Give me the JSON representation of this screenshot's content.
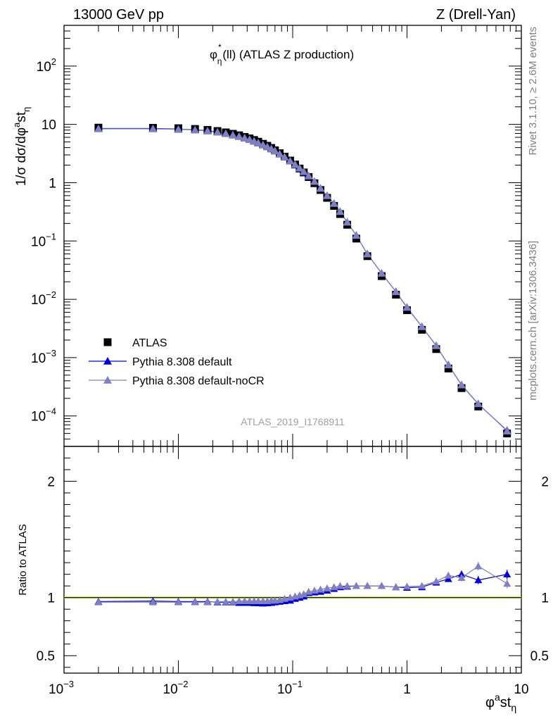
{
  "header": {
    "left": "13000 GeV pp",
    "right": "Z (Drell-Yan)"
  },
  "side_labels": {
    "rivet": "Rivet 3.1.10, ≥ 2.6M events",
    "mcplots": "mcplots.cern.ch [arXiv:1306.3436]"
  },
  "chart_data": {
    "type": "scatter",
    "title": "φ*η(ll) (ATLAS Z production)",
    "title_main": "φ",
    "title_sup": "*",
    "title_sub": "η",
    "title_rest": "(ll) (ATLAS Z production)",
    "analysis_id": "ATLAS_2019_I1768911",
    "xlabel": "φ^a st_η",
    "ylabel": "1/σ dσ/dφ^a st_η",
    "ratio_ylabel": "Ratio to ATLAS",
    "xscale": "log",
    "xlim": [
      0.001,
      10
    ],
    "ylim": [
      3e-05,
      500
    ],
    "ratio_ylim": [
      0.35,
      2.3
    ],
    "x_ticks": [
      "10^-3",
      "10^-2",
      "10^-1",
      "1",
      "10"
    ],
    "y_ticks": [
      "10^2",
      "10",
      "1",
      "10^-1",
      "10^-2",
      "10^-3",
      "10^-4"
    ],
    "ratio_ticks": [
      "2",
      "1",
      "0.5"
    ],
    "x": [
      0.002,
      0.006,
      0.01,
      0.014,
      0.018,
      0.022,
      0.026,
      0.03,
      0.034,
      0.038,
      0.042,
      0.046,
      0.05,
      0.055,
      0.06,
      0.065,
      0.07,
      0.077,
      0.085,
      0.095,
      0.105,
      0.115,
      0.125,
      0.138,
      0.155,
      0.175,
      0.2,
      0.23,
      0.26,
      0.3,
      0.36,
      0.45,
      0.6,
      0.8,
      1.0,
      1.35,
      1.8,
      2.3,
      3.0,
      4.2,
      7.5
    ],
    "legend": {
      "placement": "center-left",
      "entries": [
        "ATLAS",
        "Pythia 8.308 default",
        "Pythia 8.308 default-noCR"
      ]
    },
    "series": [
      {
        "name": "ATLAS",
        "color": "#000000",
        "marker": "square",
        "values": [
          8.8,
          8.75,
          8.6,
          8.35,
          8.05,
          7.7,
          7.3,
          6.9,
          6.5,
          6.1,
          5.75,
          5.4,
          5.05,
          4.65,
          4.3,
          3.95,
          3.6,
          3.2,
          2.8,
          2.4,
          2.05,
          1.75,
          1.5,
          1.25,
          0.98,
          0.75,
          0.55,
          0.4,
          0.29,
          0.19,
          0.11,
          0.055,
          0.025,
          0.012,
          0.0065,
          0.003,
          0.0014,
          0.00065,
          0.0003,
          0.000145,
          5e-05
        ]
      },
      {
        "name": "Pythia 8.308 default",
        "color": "#0000dd",
        "marker": "triangle",
        "values": [
          8.5,
          8.5,
          8.3,
          8.1,
          7.8,
          7.4,
          7.0,
          6.6,
          6.2,
          5.85,
          5.5,
          5.15,
          4.8,
          4.45,
          4.1,
          3.8,
          3.5,
          3.1,
          2.75,
          2.35,
          2.03,
          1.76,
          1.52,
          1.3,
          1.05,
          0.8,
          0.6,
          0.44,
          0.32,
          0.21,
          0.125,
          0.06,
          0.028,
          0.0135,
          0.0072,
          0.0034,
          0.0016,
          0.00075,
          0.00034,
          0.00016,
          5.6e-05
        ]
      },
      {
        "name": "Pythia 8.308 default-noCR",
        "color": "#8080c0",
        "marker": "triangle",
        "values": [
          8.4,
          8.4,
          8.2,
          8.0,
          7.7,
          7.35,
          6.95,
          6.55,
          6.2,
          5.85,
          5.5,
          5.15,
          4.8,
          4.45,
          4.1,
          3.8,
          3.5,
          3.1,
          2.75,
          2.36,
          2.05,
          1.78,
          1.55,
          1.31,
          1.05,
          0.8,
          0.6,
          0.44,
          0.32,
          0.21,
          0.125,
          0.06,
          0.028,
          0.0135,
          0.0073,
          0.0034,
          0.0016,
          0.00075,
          0.00034,
          0.000162,
          5.5e-05
        ]
      }
    ],
    "ratio_series": [
      {
        "name": "Pythia 8.308 default",
        "values": [
          0.965,
          0.97,
          0.965,
          0.965,
          0.965,
          0.96,
          0.96,
          0.96,
          0.955,
          0.955,
          0.955,
          0.953,
          0.952,
          0.95,
          0.952,
          0.955,
          0.96,
          0.965,
          0.97,
          0.975,
          0.99,
          1.0,
          1.01,
          1.04,
          1.045,
          1.05,
          1.06,
          1.075,
          1.09,
          1.095,
          1.1,
          1.1,
          1.1,
          1.09,
          1.085,
          1.09,
          1.13,
          1.16,
          1.2,
          1.15,
          1.2
        ],
        "errors": [
          0.01,
          0.01,
          0.01,
          0.01,
          0.01,
          0.01,
          0.01,
          0.01,
          0.01,
          0.01,
          0.01,
          0.01,
          0.01,
          0.01,
          0.01,
          0.01,
          0.01,
          0.01,
          0.01,
          0.01,
          0.01,
          0.01,
          0.01,
          0.01,
          0.01,
          0.01,
          0.01,
          0.01,
          0.01,
          0.01,
          0.01,
          0.012,
          0.012,
          0.012,
          0.012,
          0.015,
          0.02,
          0.025,
          0.03,
          0.035,
          0.04
        ]
      },
      {
        "name": "Pythia 8.308 default-noCR",
        "values": [
          0.96,
          0.96,
          0.96,
          0.96,
          0.96,
          0.965,
          0.965,
          0.965,
          0.97,
          0.97,
          0.97,
          0.97,
          0.97,
          0.97,
          0.97,
          0.975,
          0.975,
          0.98,
          0.99,
          1.0,
          1.01,
          1.02,
          1.03,
          1.05,
          1.06,
          1.07,
          1.08,
          1.09,
          1.1,
          1.1,
          1.1,
          1.1,
          1.1,
          1.09,
          1.095,
          1.1,
          1.14,
          1.19,
          1.17,
          1.27,
          1.12
        ],
        "errors": [
          0.01,
          0.01,
          0.01,
          0.01,
          0.01,
          0.01,
          0.01,
          0.01,
          0.01,
          0.01,
          0.01,
          0.01,
          0.01,
          0.01,
          0.01,
          0.01,
          0.01,
          0.01,
          0.01,
          0.01,
          0.01,
          0.01,
          0.01,
          0.01,
          0.01,
          0.01,
          0.01,
          0.01,
          0.01,
          0.01,
          0.01,
          0.012,
          0.012,
          0.012,
          0.012,
          0.015,
          0.02,
          0.025,
          0.03,
          0.035,
          0.04
        ]
      }
    ],
    "band_color": "#ccee44"
  }
}
